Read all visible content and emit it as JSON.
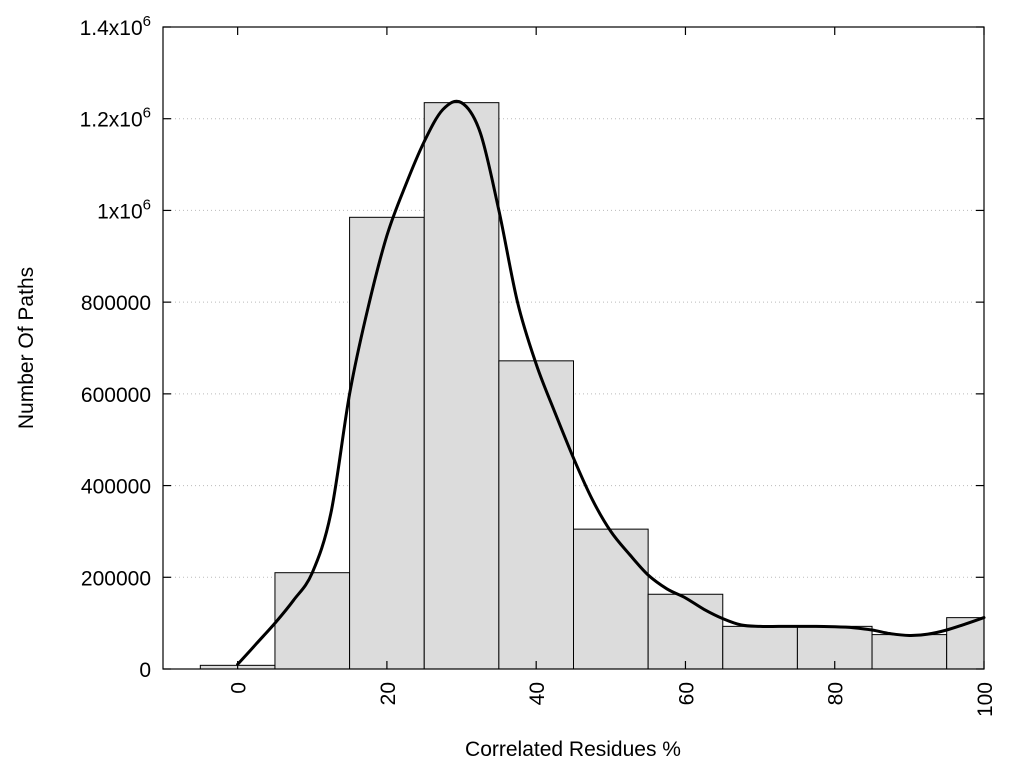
{
  "chart_data": {
    "type": "bar",
    "xlabel": "Correlated Residues %",
    "ylabel": "Number Of Paths",
    "xlim": [
      -10,
      100
    ],
    "ylim": [
      0,
      1400000
    ],
    "grid": "y dotted",
    "x_ticks": [
      {
        "value": 0,
        "label": "0"
      },
      {
        "value": 20,
        "label": "20"
      },
      {
        "value": 40,
        "label": "40"
      },
      {
        "value": 60,
        "label": "60"
      },
      {
        "value": 80,
        "label": "80"
      },
      {
        "value": 100,
        "label": "100"
      }
    ],
    "y_ticks": [
      {
        "value": 0,
        "mantissa": "0",
        "exp": ""
      },
      {
        "value": 200000,
        "mantissa": "200000",
        "exp": ""
      },
      {
        "value": 400000,
        "mantissa": "400000",
        "exp": ""
      },
      {
        "value": 600000,
        "mantissa": "600000",
        "exp": ""
      },
      {
        "value": 800000,
        "mantissa": "800000",
        "exp": ""
      },
      {
        "value": 1000000,
        "mantissa": "1x10",
        "exp": "6"
      },
      {
        "value": 1200000,
        "mantissa": "1.2x10",
        "exp": "6"
      },
      {
        "value": 1400000,
        "mantissa": "1.4x10",
        "exp": "6"
      }
    ],
    "bin_width": 10,
    "bins": [
      {
        "center": 0,
        "value": 8000
      },
      {
        "center": 10,
        "value": 210000
      },
      {
        "center": 20,
        "value": 985000
      },
      {
        "center": 30,
        "value": 1235000
      },
      {
        "center": 40,
        "value": 672000
      },
      {
        "center": 50,
        "value": 305000
      },
      {
        "center": 60,
        "value": 163000
      },
      {
        "center": 70,
        "value": 93000
      },
      {
        "center": 80,
        "value": 93000
      },
      {
        "center": 90,
        "value": 75000
      },
      {
        "center": 100,
        "value": 112000
      }
    ],
    "curve": {
      "x": [
        0,
        2.5,
        5,
        7.5,
        10,
        12.5,
        15,
        17.5,
        20,
        22.5,
        25,
        27.5,
        30,
        32.5,
        35,
        37.5,
        40,
        42.5,
        45,
        47.5,
        50,
        52.5,
        55,
        57.5,
        60,
        62.5,
        65,
        67.5,
        70,
        72.5,
        75,
        77.5,
        80,
        82.5,
        85,
        87.5,
        90,
        92.5,
        95,
        97.5,
        100
      ],
      "y": [
        10000,
        55000,
        100000,
        150000,
        210000,
        340000,
        600000,
        790000,
        945000,
        1055000,
        1150000,
        1220000,
        1235000,
        1170000,
        1000000,
        800000,
        665000,
        560000,
        460000,
        370000,
        300000,
        250000,
        205000,
        175000,
        155000,
        130000,
        110000,
        96000,
        93000,
        93000,
        93000,
        93000,
        92000,
        90000,
        85000,
        77000,
        73000,
        76000,
        85000,
        98000,
        112000
      ]
    },
    "colors": {
      "bar_fill": "#dcdcdc",
      "bar_stroke": "#000000",
      "curve": "#000000",
      "grid": "#bbbbbb"
    }
  }
}
